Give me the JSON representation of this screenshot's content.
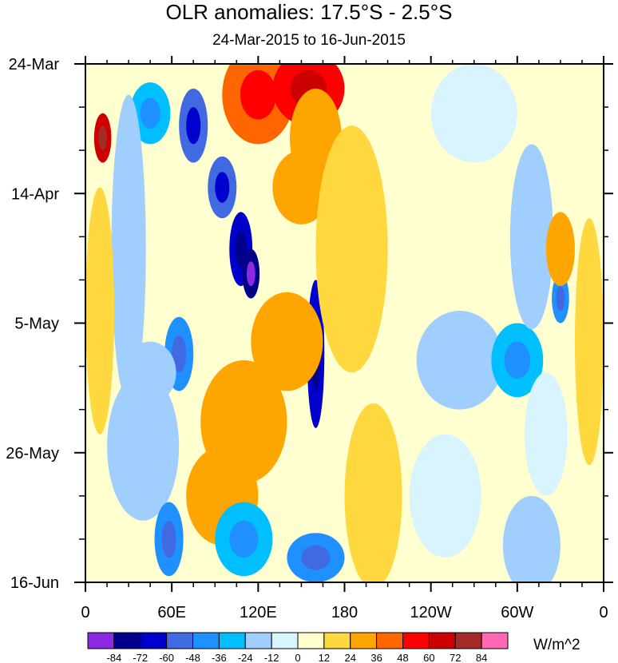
{
  "chart_data": {
    "type": "heatmap",
    "title": "OLR anomalies: 17.5°S - 2.5°S",
    "subtitle": "24-Mar-2015 to 16-Jun-2015",
    "x_ticks": [
      "0",
      "60E",
      "120E",
      "180",
      "120W",
      "60W",
      "0"
    ],
    "x_tick_lon": [
      0,
      60,
      120,
      180,
      240,
      300,
      360
    ],
    "x_range": [
      0,
      360
    ],
    "y_ticks": [
      "24-Mar",
      "14-Apr",
      "5-May",
      "26-May",
      "16-Jun"
    ],
    "y_tick_day": [
      0,
      21,
      42,
      63,
      84
    ],
    "y_range": [
      0,
      84
    ],
    "colorbar": {
      "labels": [
        "-84",
        "-72",
        "-60",
        "-48",
        "-36",
        "-24",
        "-12",
        "0",
        "12",
        "24",
        "36",
        "48",
        "60",
        "72",
        "84"
      ],
      "colors": [
        "#8a2be2",
        "#00008b",
        "#0000cd",
        "#4169e1",
        "#1e90ff",
        "#00bfff",
        "#a0cfff",
        "#d8f5ff",
        "#ffffd0",
        "#ffd840",
        "#ffa500",
        "#ff6600",
        "#ff0000",
        "#cc0000",
        "#a52a2a",
        "#ff69b4"
      ],
      "units": "W/m^2"
    },
    "missing_color": "#c0c0c0",
    "blobs": [
      {
        "lon": 12,
        "day": 12,
        "rx": 6,
        "ry": 4,
        "v": 60
      },
      {
        "lon": 45,
        "day": 8,
        "rx": 14,
        "ry": 5,
        "v": -36
      },
      {
        "lon": 75,
        "day": 10,
        "rx": 10,
        "ry": 6,
        "v": -60
      },
      {
        "lon": 95,
        "day": 20,
        "rx": 10,
        "ry": 5,
        "v": -60
      },
      {
        "lon": 108,
        "day": 30,
        "rx": 8,
        "ry": 6,
        "v": -72
      },
      {
        "lon": 115,
        "day": 34,
        "rx": 6,
        "ry": 4,
        "v": -84
      },
      {
        "lon": 120,
        "day": 5,
        "rx": 25,
        "ry": 8,
        "v": 36
      },
      {
        "lon": 155,
        "day": 4,
        "rx": 25,
        "ry": 6,
        "v": 48
      },
      {
        "lon": 160,
        "day": 12,
        "rx": 18,
        "ry": 8,
        "v": 24
      },
      {
        "lon": 160,
        "day": 47,
        "rx": 6,
        "ry": 12,
        "v": -72
      },
      {
        "lon": 140,
        "day": 45,
        "rx": 25,
        "ry": 8,
        "v": 24
      },
      {
        "lon": 150,
        "day": 20,
        "rx": 20,
        "ry": 6,
        "v": 24
      },
      {
        "lon": 65,
        "day": 47,
        "rx": 10,
        "ry": 6,
        "v": -48
      },
      {
        "lon": 45,
        "day": 50,
        "rx": 18,
        "ry": 5,
        "v": -24
      },
      {
        "lon": 40,
        "day": 62,
        "rx": 25,
        "ry": 12,
        "v": -24
      },
      {
        "lon": 110,
        "day": 58,
        "rx": 30,
        "ry": 10,
        "v": 24
      },
      {
        "lon": 95,
        "day": 70,
        "rx": 25,
        "ry": 8,
        "v": 24
      },
      {
        "lon": 58,
        "day": 77,
        "rx": 10,
        "ry": 6,
        "v": -48
      },
      {
        "lon": 110,
        "day": 77,
        "rx": 20,
        "ry": 6,
        "v": -36
      },
      {
        "lon": 160,
        "day": 80,
        "rx": 20,
        "ry": 4,
        "v": -48
      },
      {
        "lon": 185,
        "day": 30,
        "rx": 25,
        "ry": 20,
        "v": 12
      },
      {
        "lon": 260,
        "day": 48,
        "rx": 30,
        "ry": 8,
        "v": -24
      },
      {
        "lon": 300,
        "day": 48,
        "rx": 18,
        "ry": 6,
        "v": -36
      },
      {
        "lon": 310,
        "day": 28,
        "rx": 15,
        "ry": 15,
        "v": -24
      },
      {
        "lon": 330,
        "day": 38,
        "rx": 6,
        "ry": 4,
        "v": -48
      },
      {
        "lon": 270,
        "day": 8,
        "rx": 30,
        "ry": 8,
        "v": -12
      },
      {
        "lon": 320,
        "day": 60,
        "rx": 15,
        "ry": 10,
        "v": -12
      },
      {
        "lon": 310,
        "day": 78,
        "rx": 20,
        "ry": 8,
        "v": -24
      },
      {
        "lon": 250,
        "day": 70,
        "rx": 25,
        "ry": 10,
        "v": -12
      },
      {
        "lon": 30,
        "day": 30,
        "rx": 12,
        "ry": 25,
        "v": -24
      },
      {
        "lon": 10,
        "day": 40,
        "rx": 10,
        "ry": 20,
        "v": 12
      },
      {
        "lon": 200,
        "day": 70,
        "rx": 20,
        "ry": 15,
        "v": 12
      },
      {
        "lon": 330,
        "day": 30,
        "rx": 10,
        "ry": 6,
        "v": 24
      },
      {
        "lon": 350,
        "day": 45,
        "rx": 10,
        "ry": 20,
        "v": 12
      }
    ]
  }
}
